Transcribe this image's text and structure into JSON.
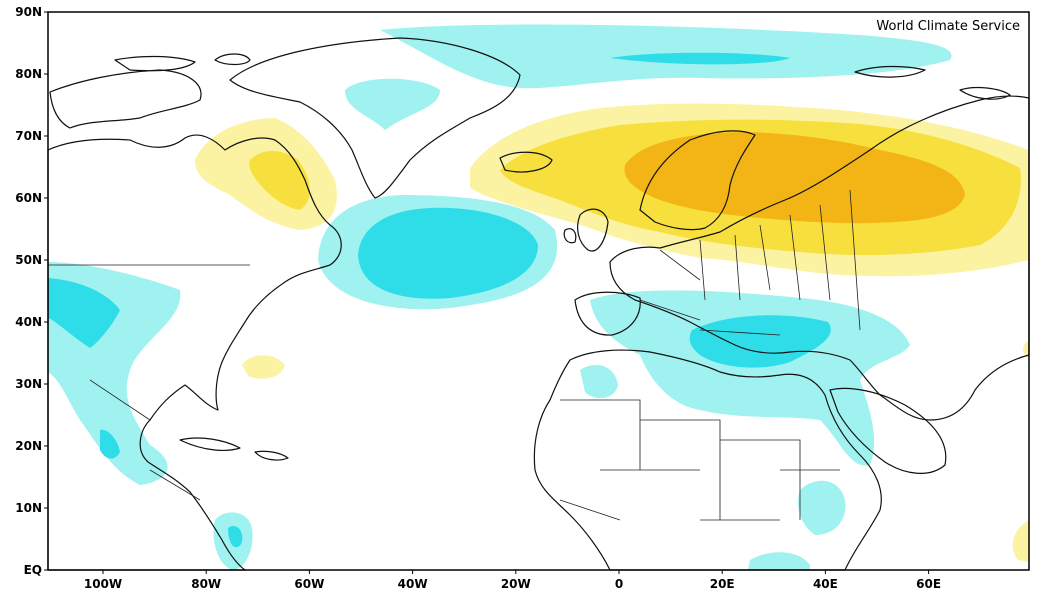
{
  "credit": "World Climate Service",
  "lat_ticks": [
    "90N",
    "80N",
    "70N",
    "60N",
    "50N",
    "40N",
    "30N",
    "20N",
    "10N",
    "EQ"
  ],
  "lon_ticks": [
    "100W",
    "80W",
    "60W",
    "40W",
    "20W",
    "0",
    "20E",
    "40E",
    "60E"
  ],
  "colors": {
    "cool_light": "#9ff2f0",
    "cool_strong": "#2fdde8",
    "warm_light": "#fbf3a2",
    "warm_mid": "#f7df3e",
    "warm_strong": "#f2b515",
    "land_lines": "#111111"
  }
}
